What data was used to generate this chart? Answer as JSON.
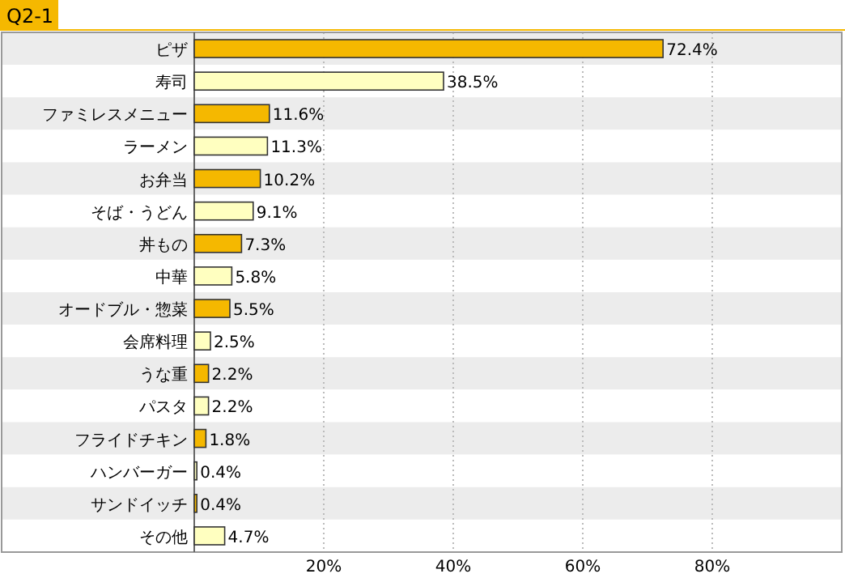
{
  "chart_data": {
    "type": "bar",
    "title": "Q2-1",
    "orientation": "horizontal",
    "categories": [
      "ピザ",
      "寿司",
      "ファミレスメニュー",
      "ラーメン",
      "お弁当",
      "そば・うどん",
      "丼もの",
      "中華",
      "オードブル・惣菜",
      "会席料理",
      "うな重",
      "パスタ",
      "フライドチキン",
      "ハンバーガー",
      "サンドイッチ",
      "その他"
    ],
    "values": [
      72.4,
      38.5,
      11.6,
      11.3,
      10.2,
      9.1,
      7.3,
      5.8,
      5.5,
      2.5,
      2.2,
      2.2,
      1.8,
      0.4,
      0.4,
      4.7
    ],
    "value_labels": [
      "72.4%",
      "38.5%",
      "11.6%",
      "11.3%",
      "10.2%",
      "9.1%",
      "7.3%",
      "5.8%",
      "5.5%",
      "2.5%",
      "2.2%",
      "2.2%",
      "1.8%",
      "0.4%",
      "0.4%",
      "4.7%"
    ],
    "colors": [
      "#f5b800",
      "#ffffc0",
      "#f5b800",
      "#ffffc0",
      "#f5b800",
      "#ffffc0",
      "#f5b800",
      "#ffffc0",
      "#f5b800",
      "#ffffc0",
      "#f5b800",
      "#ffffc0",
      "#f5b800",
      "#ffffc0",
      "#f5b800",
      "#ffffc0"
    ],
    "xlim": [
      0,
      100
    ],
    "xticks": [
      {
        "value": 20,
        "label": "20%"
      },
      {
        "value": 40,
        "label": "40%"
      },
      {
        "value": 60,
        "label": "60%"
      },
      {
        "value": 80,
        "label": "80%"
      }
    ],
    "grid": "x"
  }
}
